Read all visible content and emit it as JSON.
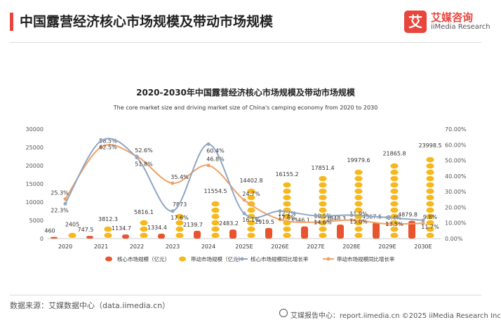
{
  "header": {
    "title": "中国露营经济核心市场规模及带动市场规模",
    "brand_cn": "艾媒咨询",
    "brand_en": "iiMedia Research",
    "logo_glyph": "艾",
    "accent": "#e8453c"
  },
  "footer": {
    "source": "数据来源：艾媒数据中心（data.iimedia.cn）",
    "right": "艾媒报告中心：report.iimedia.cn    ©2025  iiMedia Research  Inc"
  },
  "chart_data": {
    "type": "bar",
    "title": "2020-2030年中国露营经济核心市场规模及带动市场规模",
    "subtitle": "The core market size and driving market size of China's camping economy from 2020 to 2030",
    "categories": [
      "2020",
      "2021",
      "2022",
      "2023",
      "2024",
      "2025E",
      "2026E",
      "2027E",
      "2028E",
      "2029E",
      "2030E"
    ],
    "ylim_left": [
      0,
      30000
    ],
    "yticks_left": [
      "0",
      "5000",
      "10000",
      "15000",
      "20000",
      "25000",
      "30000"
    ],
    "ylim_right": [
      0,
      70
    ],
    "yticks_right": [
      "0.00%",
      "10.00%",
      "20.00%",
      "30.00%",
      "40.00%",
      "50.00%",
      "60.00%",
      "70.00%"
    ],
    "legend_position": "bottom",
    "series": [
      {
        "name": "核心市场规模（亿元）",
        "kind": "bar",
        "color": "#e8542d",
        "values": [
          460,
          747.5,
          1134.7,
          1334.4,
          2139.7,
          2483.2,
          2919.5,
          3346.1,
          3848.3,
          4367.6,
          4879.8
        ],
        "labels": [
          "460",
          "747.5",
          "1134.7",
          "1334.4",
          "2139.7",
          "2483.2",
          "2919.5",
          "3346.1",
          "3848.3",
          "4367.6",
          "4879.8"
        ]
      },
      {
        "name": "带动市场规模（亿元）",
        "kind": "bar",
        "color": "#f6b81c",
        "values": [
          2405,
          3812.3,
          5816.1,
          7873,
          11554.5,
          14402.8,
          16155.2,
          17851.4,
          19979.6,
          21865.8,
          23998.5
        ],
        "labels": [
          "2405",
          "3812.3",
          "5816.1",
          "7873",
          "11554.5",
          "14402.8",
          "16155.2",
          "17851.4",
          "19979.6",
          "21865.8",
          "23998.5"
        ]
      },
      {
        "name": "核心市场规模同比增长率",
        "kind": "line",
        "color": "#8fa6c4",
        "values": [
          22.3,
          62.5,
          51.8,
          17.6,
          60.4,
          16.1,
          17.6,
          14.6,
          15.0,
          13.5,
          11.7
        ],
        "labels": [
          "22.3%",
          "62.5%",
          "51.8%",
          "17.6%",
          "60.4%",
          "16.1%",
          "17.6%",
          "14.6%",
          "15.0%",
          "13.5%",
          "11.7%"
        ]
      },
      {
        "name": "带动市场规模同比增长率",
        "kind": "line",
        "color": "#f0a064",
        "values": [
          25.3,
          58.5,
          52.6,
          35.4,
          46.8,
          24.7,
          12.2,
          10.5,
          11.9,
          9.4,
          9.8
        ],
        "labels": [
          "25.3%",
          "58.5%",
          "52.6%",
          "35.4%",
          "46.8%",
          "24.7%",
          "12.2%",
          "10.5%",
          "11.9%",
          "9.4%",
          "9.8%"
        ]
      }
    ]
  }
}
